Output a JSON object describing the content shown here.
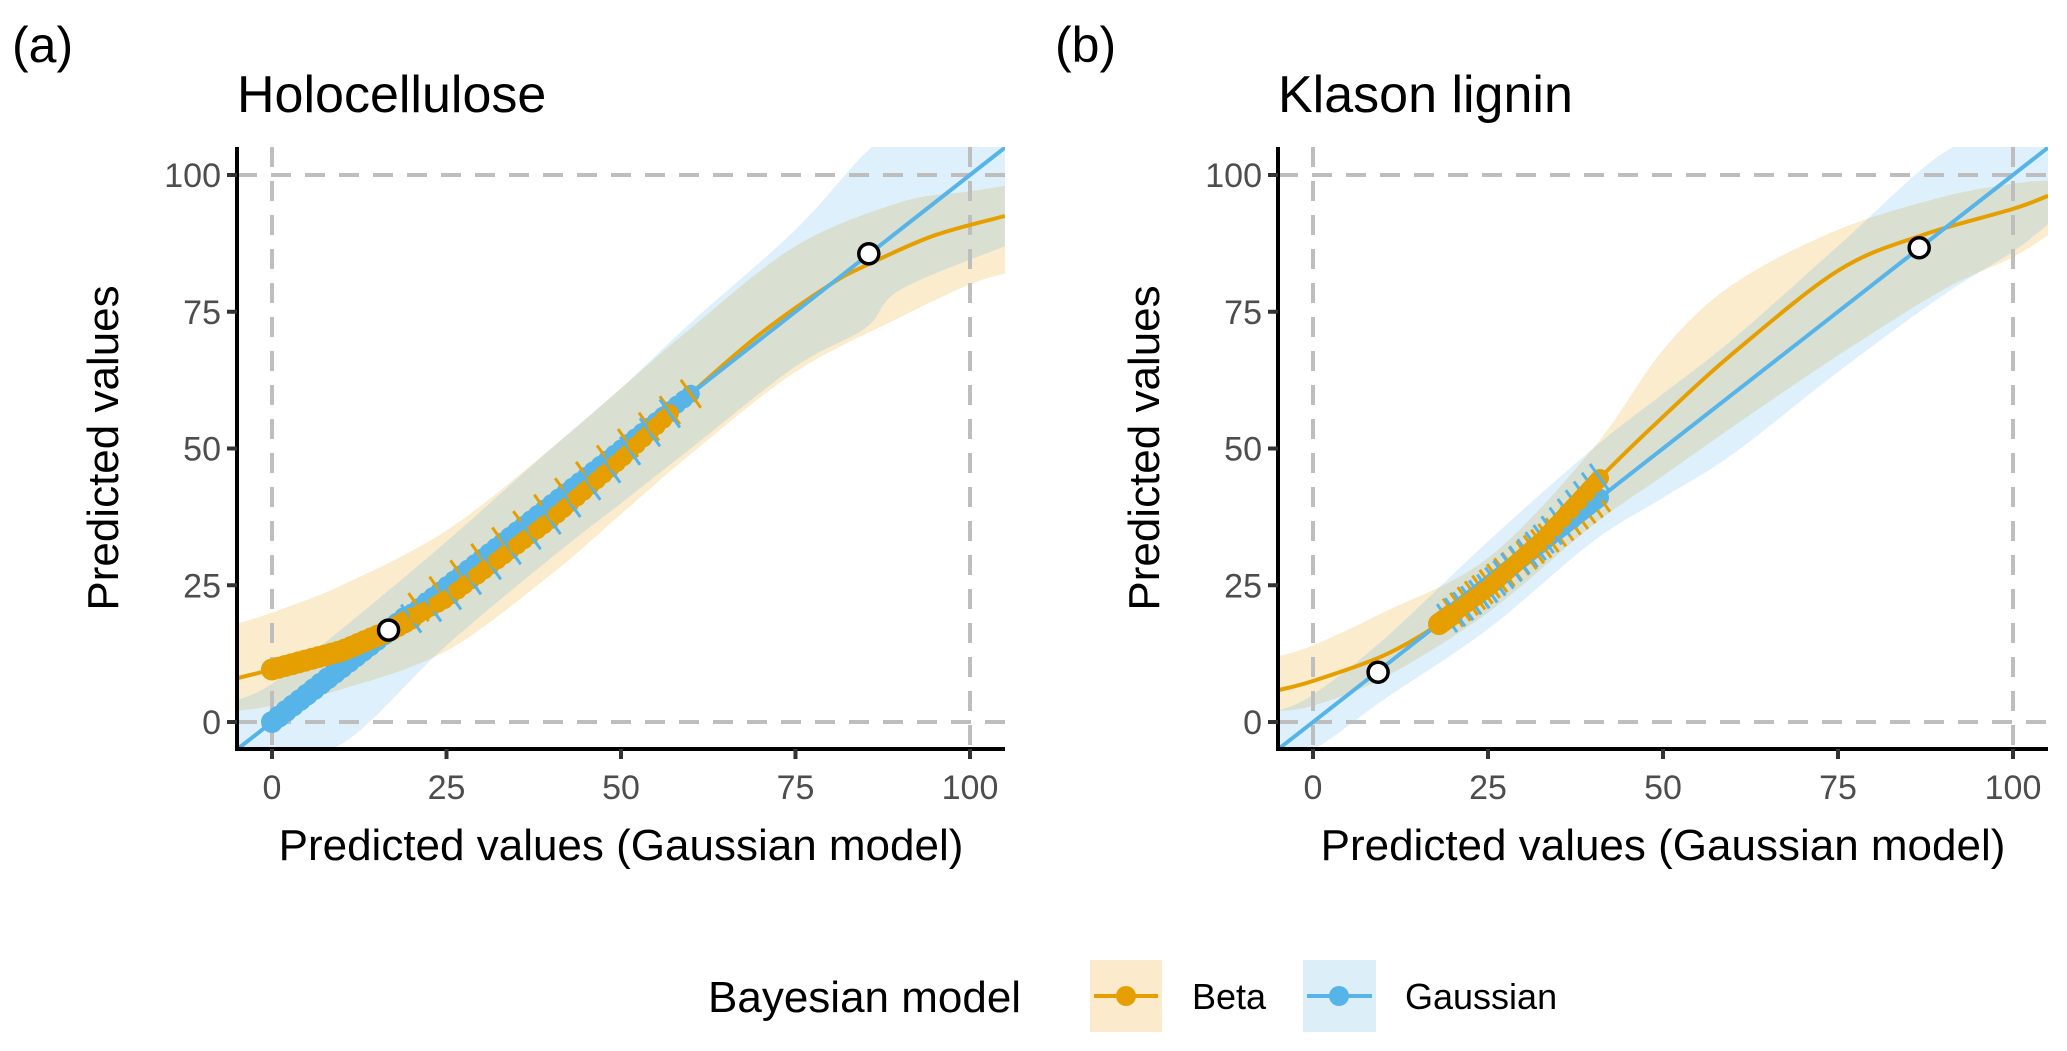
{
  "colors": {
    "beta": "#E69F00",
    "beta_band": "#FBEBCC",
    "gaussian": "#56B4E9",
    "gaussian_band": "#DCEFF9",
    "overlap_band": "#DBE2D3",
    "reference_line": "#BEBEBE",
    "axis": "#000000",
    "tick_text": "#4D4D4D"
  },
  "legend": {
    "title": "Bayesian model",
    "items": [
      {
        "key": "beta",
        "label": "Beta"
      },
      {
        "key": "gaussian",
        "label": "Gaussian"
      }
    ],
    "position": "bottom"
  },
  "chart_data": [
    {
      "type": "line",
      "panel_tag": "(a)",
      "title": "Holocellulose",
      "xlabel": "Predicted values (Gaussian model)",
      "ylabel": "Predicted values",
      "xlim": [
        -5,
        105
      ],
      "ylim": [
        -3.5,
        105
      ],
      "xticks": [
        0,
        25,
        50,
        75,
        100
      ],
      "yticks": [
        0,
        25,
        50,
        75,
        100
      ],
      "tick_labels_x": [
        "0",
        "25",
        "50",
        "75",
        "100"
      ],
      "tick_labels_y": [
        "0",
        "25",
        "50",
        "75",
        "100"
      ],
      "reference_lines": {
        "x": [
          0,
          100
        ],
        "y": [
          0,
          100
        ],
        "style": "dashed"
      },
      "grid": false,
      "series": [
        {
          "name": "Beta",
          "key": "beta",
          "line": {
            "x": [
              -5,
              0,
              10,
              17,
              25,
              40,
              50,
              60,
              70,
              80,
              86,
              95,
              105
            ],
            "y": [
              8.0,
              9.6,
              13,
              16.8,
              22.5,
              37,
              48,
              60,
              71,
              80,
              84,
              89,
              92.5
            ]
          },
          "band": {
            "x": [
              -5,
              0,
              10,
              25,
              40,
              50,
              60,
              75,
              90,
              100,
              105
            ],
            "upper": [
              18,
              20,
              25,
              35,
              50,
              61,
              72,
              87,
              95,
              97,
              98
            ],
            "lower": [
              2,
              3,
              6,
              13,
              27,
              38,
              49,
              64,
              74,
              80,
              82
            ]
          },
          "points_x_range": [
            0,
            57
          ]
        },
        {
          "name": "Gaussian",
          "key": "gaussian",
          "line": {
            "x": [
              -5,
              105
            ],
            "y": [
              -5,
              105
            ]
          },
          "band": {
            "x": [
              -5,
              0,
              10,
              25,
              40,
              50,
              60,
              75,
              85,
              90,
              105
            ],
            "upper": [
              4,
              7,
              17,
              33,
              50,
              61,
              73,
              90,
              104,
              108,
              108
            ],
            "lower": [
              -5,
              -5,
              -4,
              14,
              30,
              40,
              50,
              65,
              72,
              79,
              87
            ]
          },
          "points_x_range": [
            0,
            60
          ]
        }
      ],
      "highlighted_points": [
        {
          "x": 16.7,
          "y": 16.8
        },
        {
          "x": 85.5,
          "y": 85.6
        }
      ]
    },
    {
      "type": "line",
      "panel_tag": "(b)",
      "title": "Klason lignin",
      "xlabel": "Predicted values (Gaussian model)",
      "ylabel": "Predicted values",
      "xlim": [
        -5,
        105
      ],
      "ylim": [
        -3.5,
        105
      ],
      "xticks": [
        0,
        25,
        50,
        75,
        100
      ],
      "yticks": [
        0,
        25,
        50,
        75,
        100
      ],
      "tick_labels_x": [
        "0",
        "25",
        "50",
        "75",
        "100"
      ],
      "tick_labels_y": [
        "0",
        "25",
        "50",
        "75",
        "100"
      ],
      "reference_lines": {
        "x": [
          0,
          100
        ],
        "y": [
          0,
          100
        ],
        "style": "dashed"
      },
      "grid": false,
      "series": [
        {
          "name": "Beta",
          "key": "beta",
          "line": {
            "x": [
              -5,
              0,
              10,
              18,
              25,
              33,
              41,
              50,
              60,
              75,
              87,
              100,
              105
            ],
            "y": [
              5.8,
              7.5,
              12.1,
              17.9,
              24.5,
              33.5,
              44.6,
              55.8,
              67.4,
              82.5,
              89,
              93.8,
              96.2
            ]
          },
          "band": {
            "x": [
              -5,
              0,
              10,
              25,
              40,
              50,
              60,
              75,
              90,
              100,
              105
            ],
            "upper": [
              12,
              14,
              20,
              30,
              50,
              68,
              80,
              90,
              96,
              98.4,
              99
            ],
            "lower": [
              2,
              3,
              8,
              20,
              36,
              45,
              54,
              67,
              79,
              85,
              89
            ]
          },
          "points_x_range": [
            18,
            41
          ]
        },
        {
          "name": "Gaussian",
          "key": "gaussian",
          "line": {
            "x": [
              -5,
              105
            ],
            "y": [
              -5,
              105
            ]
          },
          "band": {
            "x": [
              -5,
              0,
              10,
              25,
              40,
              50,
              60,
              75,
              90,
              100,
              105
            ],
            "upper": [
              2,
              5,
              15,
              33,
              50,
              60,
              70,
              87,
              104,
              108,
              108
            ],
            "lower": [
              -5,
              -5,
              4,
              17,
              33,
              41,
              49,
              64,
              78,
              86,
              91
            ]
          },
          "points_x_range": [
            20,
            41
          ]
        }
      ],
      "highlighted_points": [
        {
          "x": 9.3,
          "y": 9.1
        },
        {
          "x": 86.6,
          "y": 86.7
        }
      ]
    }
  ]
}
